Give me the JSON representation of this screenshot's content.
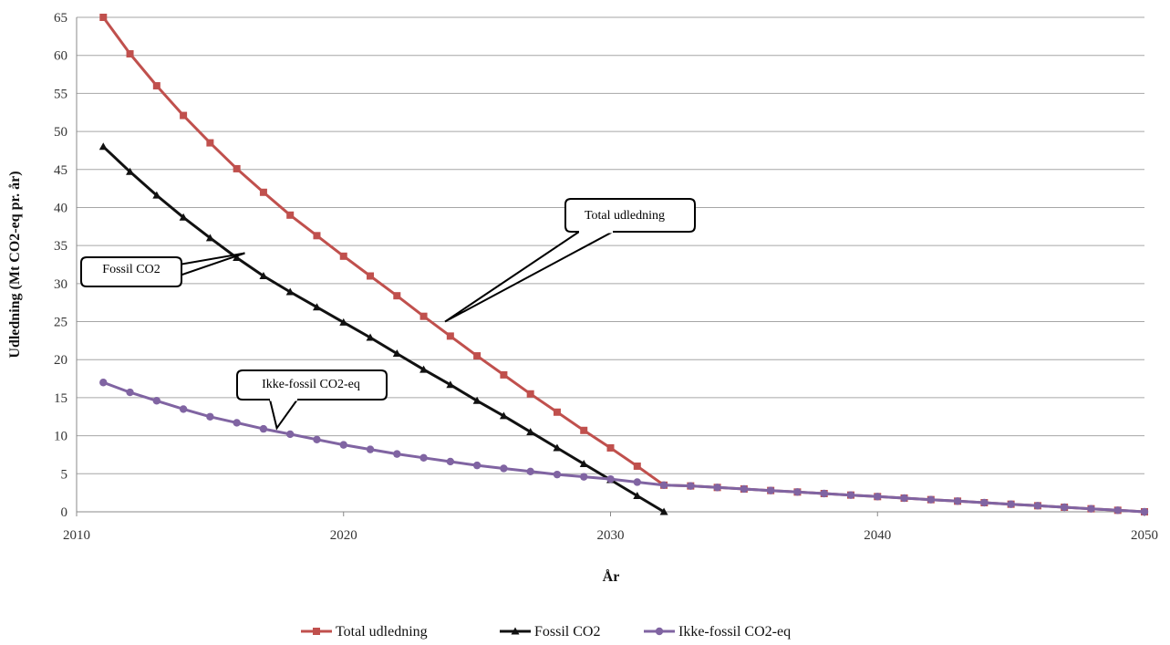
{
  "chart_data": {
    "type": "line",
    "title": "",
    "xlabel": "År",
    "ylabel": "Udledning (Mt CO2-eq pr. år)",
    "xlim": [
      2010,
      2050
    ],
    "ylim": [
      0,
      65
    ],
    "x_ticks": [
      "2010",
      "2020",
      "2030",
      "2040",
      "2050"
    ],
    "y_ticks": [
      "0",
      "5",
      "10",
      "15",
      "20",
      "25",
      "30",
      "35",
      "40",
      "45",
      "50",
      "55",
      "60",
      "65"
    ],
    "grid": "horizontal",
    "legend_position": "bottom",
    "series": [
      {
        "name": "Total udledning",
        "color": "#c0504d",
        "marker": "square",
        "x": [
          2011,
          2012,
          2013,
          2014,
          2015,
          2016,
          2017,
          2018,
          2019,
          2020,
          2021,
          2022,
          2023,
          2024,
          2025,
          2026,
          2027,
          2028,
          2029,
          2030,
          2031,
          2032,
          2033,
          2034,
          2035,
          2036,
          2037,
          2038,
          2039,
          2040,
          2041,
          2042,
          2043,
          2044,
          2045,
          2046,
          2047,
          2048,
          2049,
          2050
        ],
        "values": [
          65,
          60.2,
          56,
          52.1,
          48.5,
          45.1,
          42,
          39,
          36.3,
          33.6,
          31,
          28.4,
          25.7,
          23.1,
          20.5,
          18,
          15.5,
          13.1,
          10.7,
          8.4,
          6,
          3.5,
          3.4,
          3.2,
          3,
          2.8,
          2.6,
          2.4,
          2.2,
          2,
          1.8,
          1.6,
          1.4,
          1.2,
          1,
          0.8,
          0.6,
          0.4,
          0.2,
          0
        ]
      },
      {
        "name": "Fossil CO2",
        "color": "#111111",
        "marker": "triangle",
        "x": [
          2011,
          2012,
          2013,
          2014,
          2015,
          2016,
          2017,
          2018,
          2019,
          2020,
          2021,
          2022,
          2023,
          2024,
          2025,
          2026,
          2027,
          2028,
          2029,
          2030,
          2031,
          2032
        ],
        "values": [
          48,
          44.7,
          41.6,
          38.7,
          36,
          33.4,
          31,
          28.9,
          26.9,
          24.9,
          22.9,
          20.8,
          18.7,
          16.7,
          14.6,
          12.6,
          10.5,
          8.4,
          6.3,
          4.2,
          2.1,
          0
        ]
      },
      {
        "name": "Ikke-fossil CO2-eq",
        "color": "#8064a2",
        "marker": "circle",
        "x": [
          2011,
          2012,
          2013,
          2014,
          2015,
          2016,
          2017,
          2018,
          2019,
          2020,
          2021,
          2022,
          2023,
          2024,
          2025,
          2026,
          2027,
          2028,
          2029,
          2030,
          2031,
          2032,
          2033,
          2034,
          2035,
          2036,
          2037,
          2038,
          2039,
          2040,
          2041,
          2042,
          2043,
          2044,
          2045,
          2046,
          2047,
          2048,
          2049,
          2050
        ],
        "values": [
          17,
          15.7,
          14.6,
          13.5,
          12.5,
          11.7,
          10.9,
          10.2,
          9.5,
          8.8,
          8.2,
          7.6,
          7.1,
          6.6,
          6.1,
          5.7,
          5.3,
          4.9,
          4.6,
          4.3,
          3.9,
          3.5,
          3.4,
          3.2,
          3,
          2.8,
          2.6,
          2.4,
          2.2,
          2,
          1.8,
          1.6,
          1.4,
          1.2,
          1,
          0.8,
          0.6,
          0.4,
          0.2,
          0
        ]
      }
    ],
    "annotations": [
      {
        "id": "total",
        "text": "Total udledning",
        "target": [
          2023.8,
          25
        ]
      },
      {
        "id": "fossil",
        "text": "Fossil CO2",
        "target": [
          2016.3,
          34
        ]
      },
      {
        "id": "ikke",
        "text": "Ikke-fossil CO2-eq",
        "target": [
          2017.5,
          11
        ]
      }
    ]
  }
}
